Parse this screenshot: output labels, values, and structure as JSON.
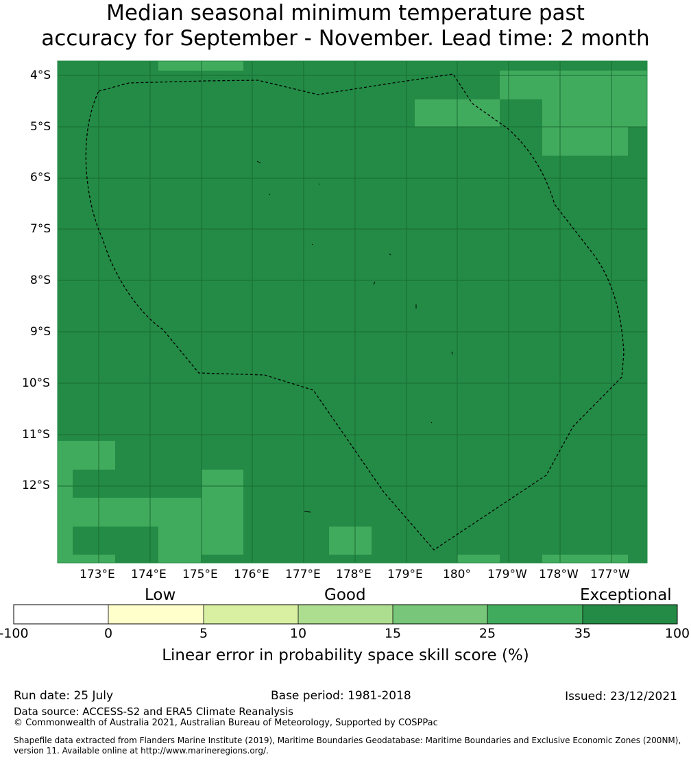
{
  "title_line1": "Median seasonal minimum temperature past",
  "title_line2": "accuracy for September - November. Lead time: 2 month",
  "map": {
    "lon_labels": [
      "173°E",
      "174°E",
      "175°E",
      "176°E",
      "177°E",
      "178°E",
      "179°E",
      "180°",
      "179°W",
      "178°W",
      "177°W"
    ],
    "lat_labels": [
      "4°S",
      "5°S",
      "6°S",
      "7°S",
      "8°S",
      "9°S",
      "10°S",
      "11°S",
      "12°S"
    ],
    "background_category": "Exceptional",
    "cell_colors": {
      "exceptional": "#238b45",
      "very_high": "#41ab5d",
      "border_line": "#000000",
      "gridline": "#1f6e38"
    }
  },
  "colorbar": {
    "category_labels": [
      "Low",
      "Good",
      "Exceptional"
    ],
    "tick_labels": [
      "-100",
      "0",
      "5",
      "10",
      "15",
      "25",
      "35",
      "100"
    ],
    "colors": [
      "#ffffff",
      "#ffffcc",
      "#d9f0a3",
      "#addd8e",
      "#78c679",
      "#41ab5d",
      "#238b45"
    ],
    "label": "Linear error in probability space skill score (%)"
  },
  "footer": {
    "run_date": "Run date: 25 July",
    "base_period": "Base period: 1981-2018",
    "issued": "Issued: 23/12/2021",
    "data_source": "Data source: ACCESS-S2 and ERA5 Climate Reanalysis",
    "copyright": "© Commonwealth of Australia 2021, Australian Bureau of Meteorology, Supported by COSPPac",
    "shapefile_line1": "Shapefile data extracted from Flanders Marine Institute (2019), Maritime Boundaries Geodatabase: Maritime Boundaries and Exclusive Economic Zones (200NM),",
    "shapefile_line2": "version 11. Available online at http://www.marineregions.org/."
  }
}
